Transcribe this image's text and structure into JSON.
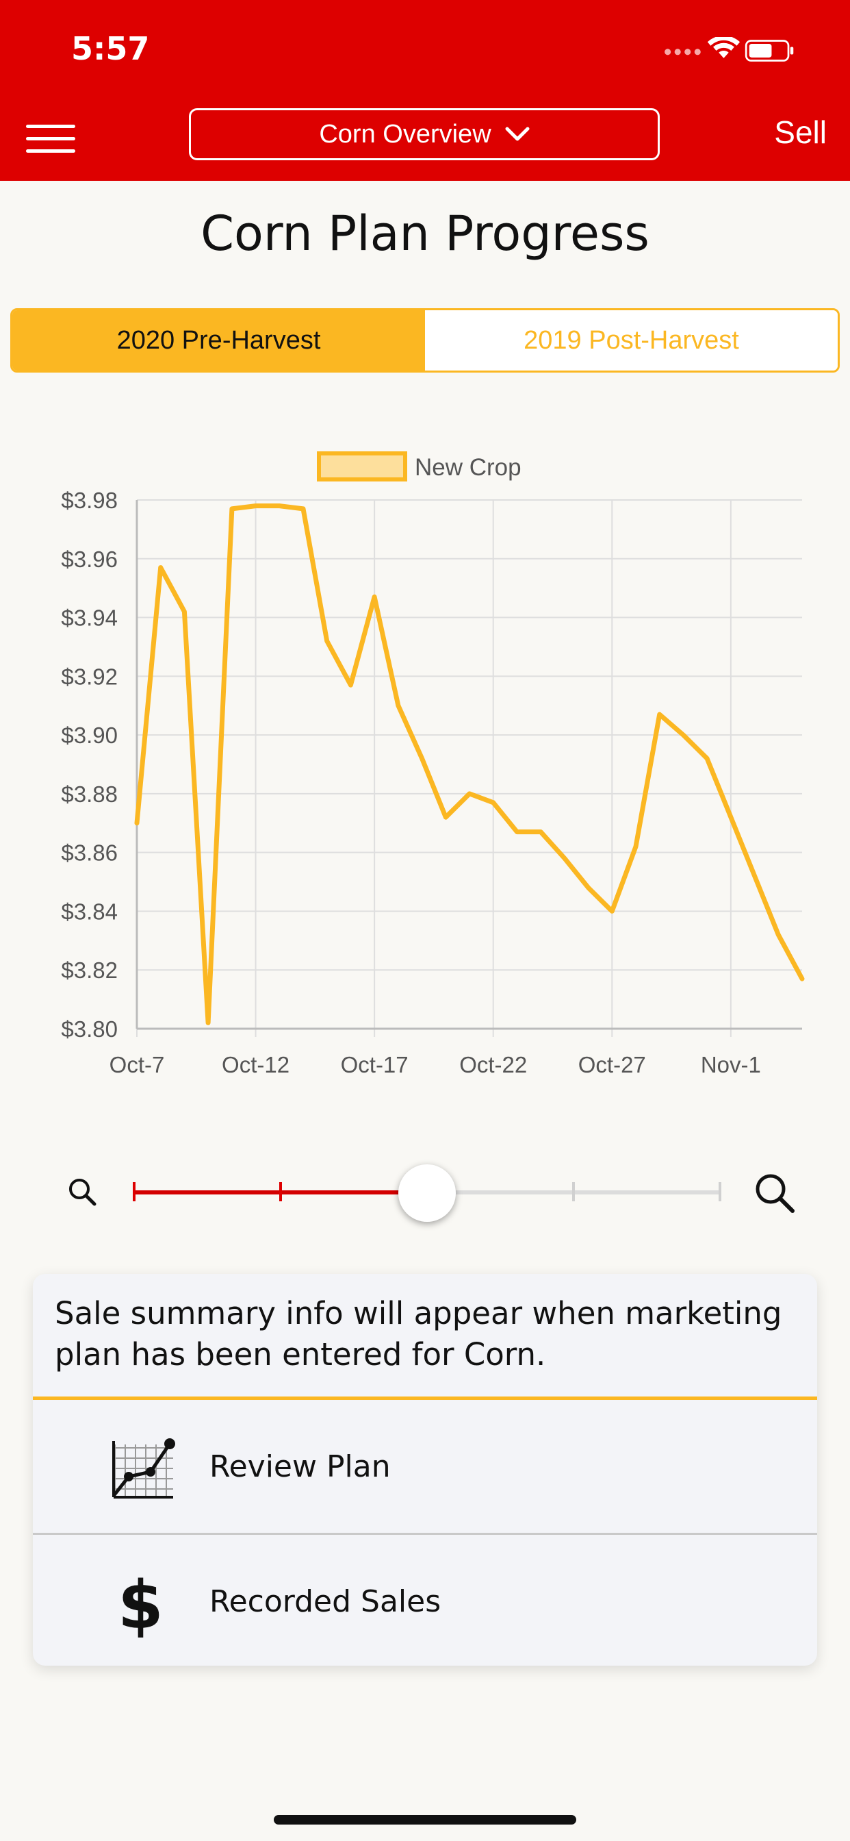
{
  "status": {
    "time": "5:57"
  },
  "header": {
    "dropdown_label": "Corn Overview",
    "sell_label": "Sell"
  },
  "page": {
    "title": "Corn Plan Progress"
  },
  "segments": {
    "active": "2020 Pre-Harvest",
    "inactive": "2019 Post-Harvest"
  },
  "chart_data": {
    "type": "line",
    "title": "",
    "xlabel": "",
    "ylabel": "",
    "legend": {
      "placement": "top-center",
      "entries": [
        "New Crop"
      ]
    },
    "series": [
      {
        "name": "New Crop",
        "color": "#fbb722",
        "x": [
          "Oct-7",
          "Oct-8",
          "Oct-9",
          "Oct-10",
          "Oct-11",
          "Oct-12",
          "Oct-13",
          "Oct-14",
          "Oct-15",
          "Oct-16",
          "Oct-17",
          "Oct-18",
          "Oct-19",
          "Oct-20",
          "Oct-21",
          "Oct-22",
          "Oct-23",
          "Oct-24",
          "Oct-25",
          "Oct-26",
          "Oct-27",
          "Oct-28",
          "Oct-29",
          "Oct-30",
          "Oct-31",
          "Nov-1",
          "Nov-2",
          "Nov-3",
          "Nov-4"
        ],
        "y": [
          3.87,
          3.957,
          3.942,
          3.802,
          3.977,
          3.978,
          3.978,
          3.977,
          3.932,
          3.917,
          3.947,
          3.91,
          3.892,
          3.872,
          3.88,
          3.877,
          3.867,
          3.867,
          3.858,
          3.848,
          3.84,
          3.862,
          3.907,
          3.9,
          3.892,
          3.872,
          3.852,
          3.832,
          3.817
        ]
      }
    ],
    "ylim": [
      3.8,
      3.98
    ],
    "y_ticks": [
      "$3.98",
      "$3.96",
      "$3.94",
      "$3.92",
      "$3.90",
      "$3.88",
      "$3.86",
      "$3.84",
      "$3.82",
      "$3.80"
    ],
    "x_ticks": [
      "Oct-7",
      "Oct-12",
      "Oct-17",
      "Oct-22",
      "Oct-27",
      "Nov-1"
    ],
    "grid": true
  },
  "zoom": {
    "level": 0.5,
    "ticks": [
      0,
      0.25,
      0.5,
      0.75,
      1
    ]
  },
  "summary": {
    "info": "Sale summary info will appear when marketing plan has been entered for Corn.",
    "review_label": "Review Plan",
    "sales_label": "Recorded Sales"
  },
  "colors": {
    "brand_red": "#dd0000",
    "accent_yellow": "#fbb722"
  },
  "icons": {
    "menu": "hamburger-icon",
    "dropdown": "chevron-down-icon",
    "zoom_out": "magnifier-small-icon",
    "zoom_in": "magnifier-large-icon",
    "review": "chart-grid-icon",
    "sales": "dollar-icon"
  }
}
